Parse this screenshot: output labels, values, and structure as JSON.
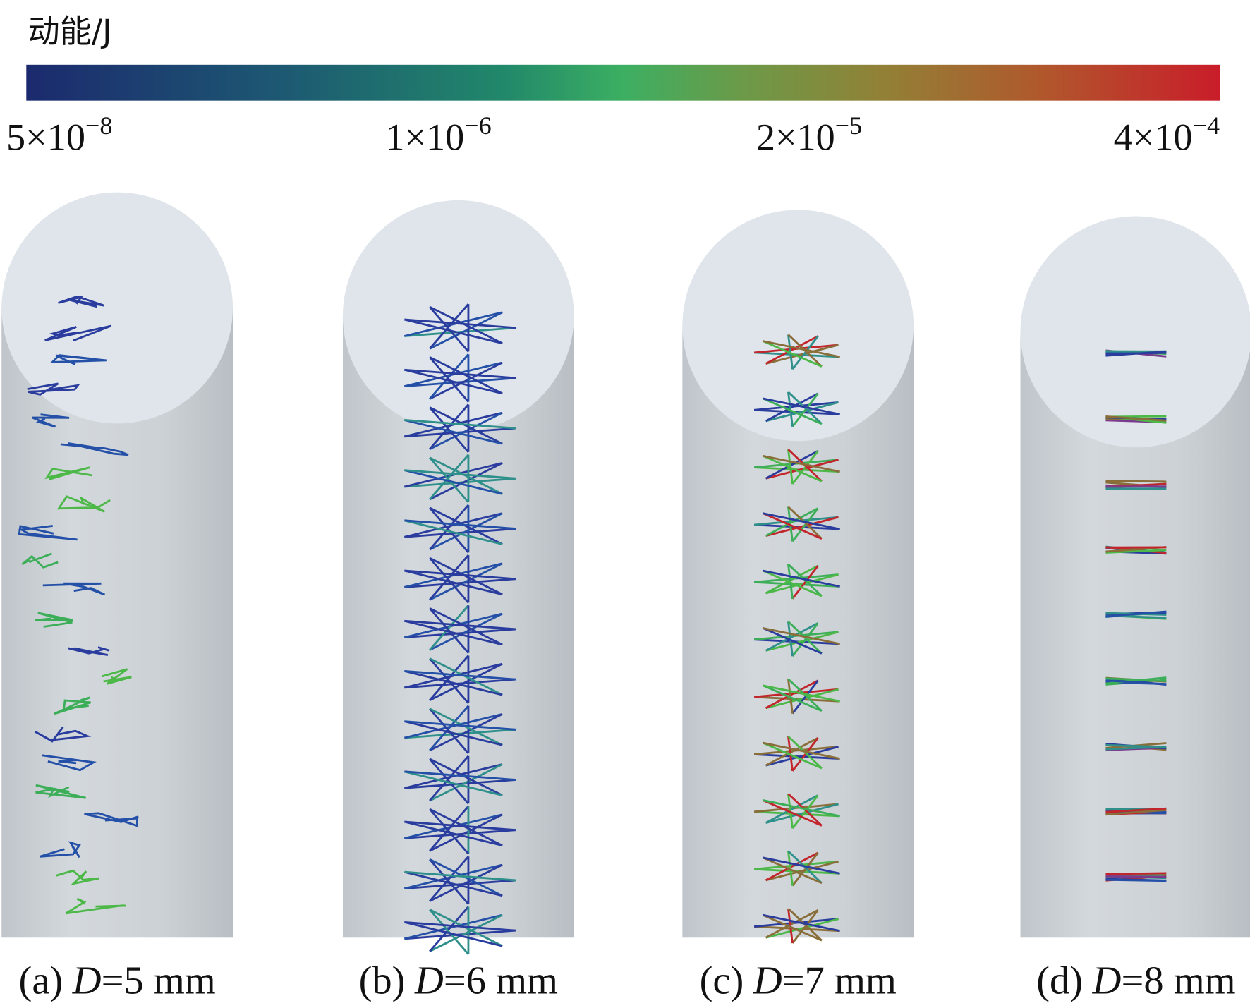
{
  "colorbar": {
    "title": "动能/J",
    "ticks": [
      {
        "mantissa": "5×10",
        "exponent": "−8"
      },
      {
        "mantissa": "1×10",
        "exponent": "−6"
      },
      {
        "mantissa": "2×10",
        "exponent": "−5"
      },
      {
        "mantissa": "4×10",
        "exponent": "−4"
      }
    ]
  },
  "panels": [
    {
      "label": "(a)",
      "variable": "D",
      "value": "=5 mm"
    },
    {
      "label": "(b)",
      "variable": "D",
      "value": "=6 mm"
    },
    {
      "label": "(c)",
      "variable": "D",
      "value": "=7 mm"
    },
    {
      "label": "(d)",
      "variable": "D",
      "value": "=8 mm"
    }
  ]
}
